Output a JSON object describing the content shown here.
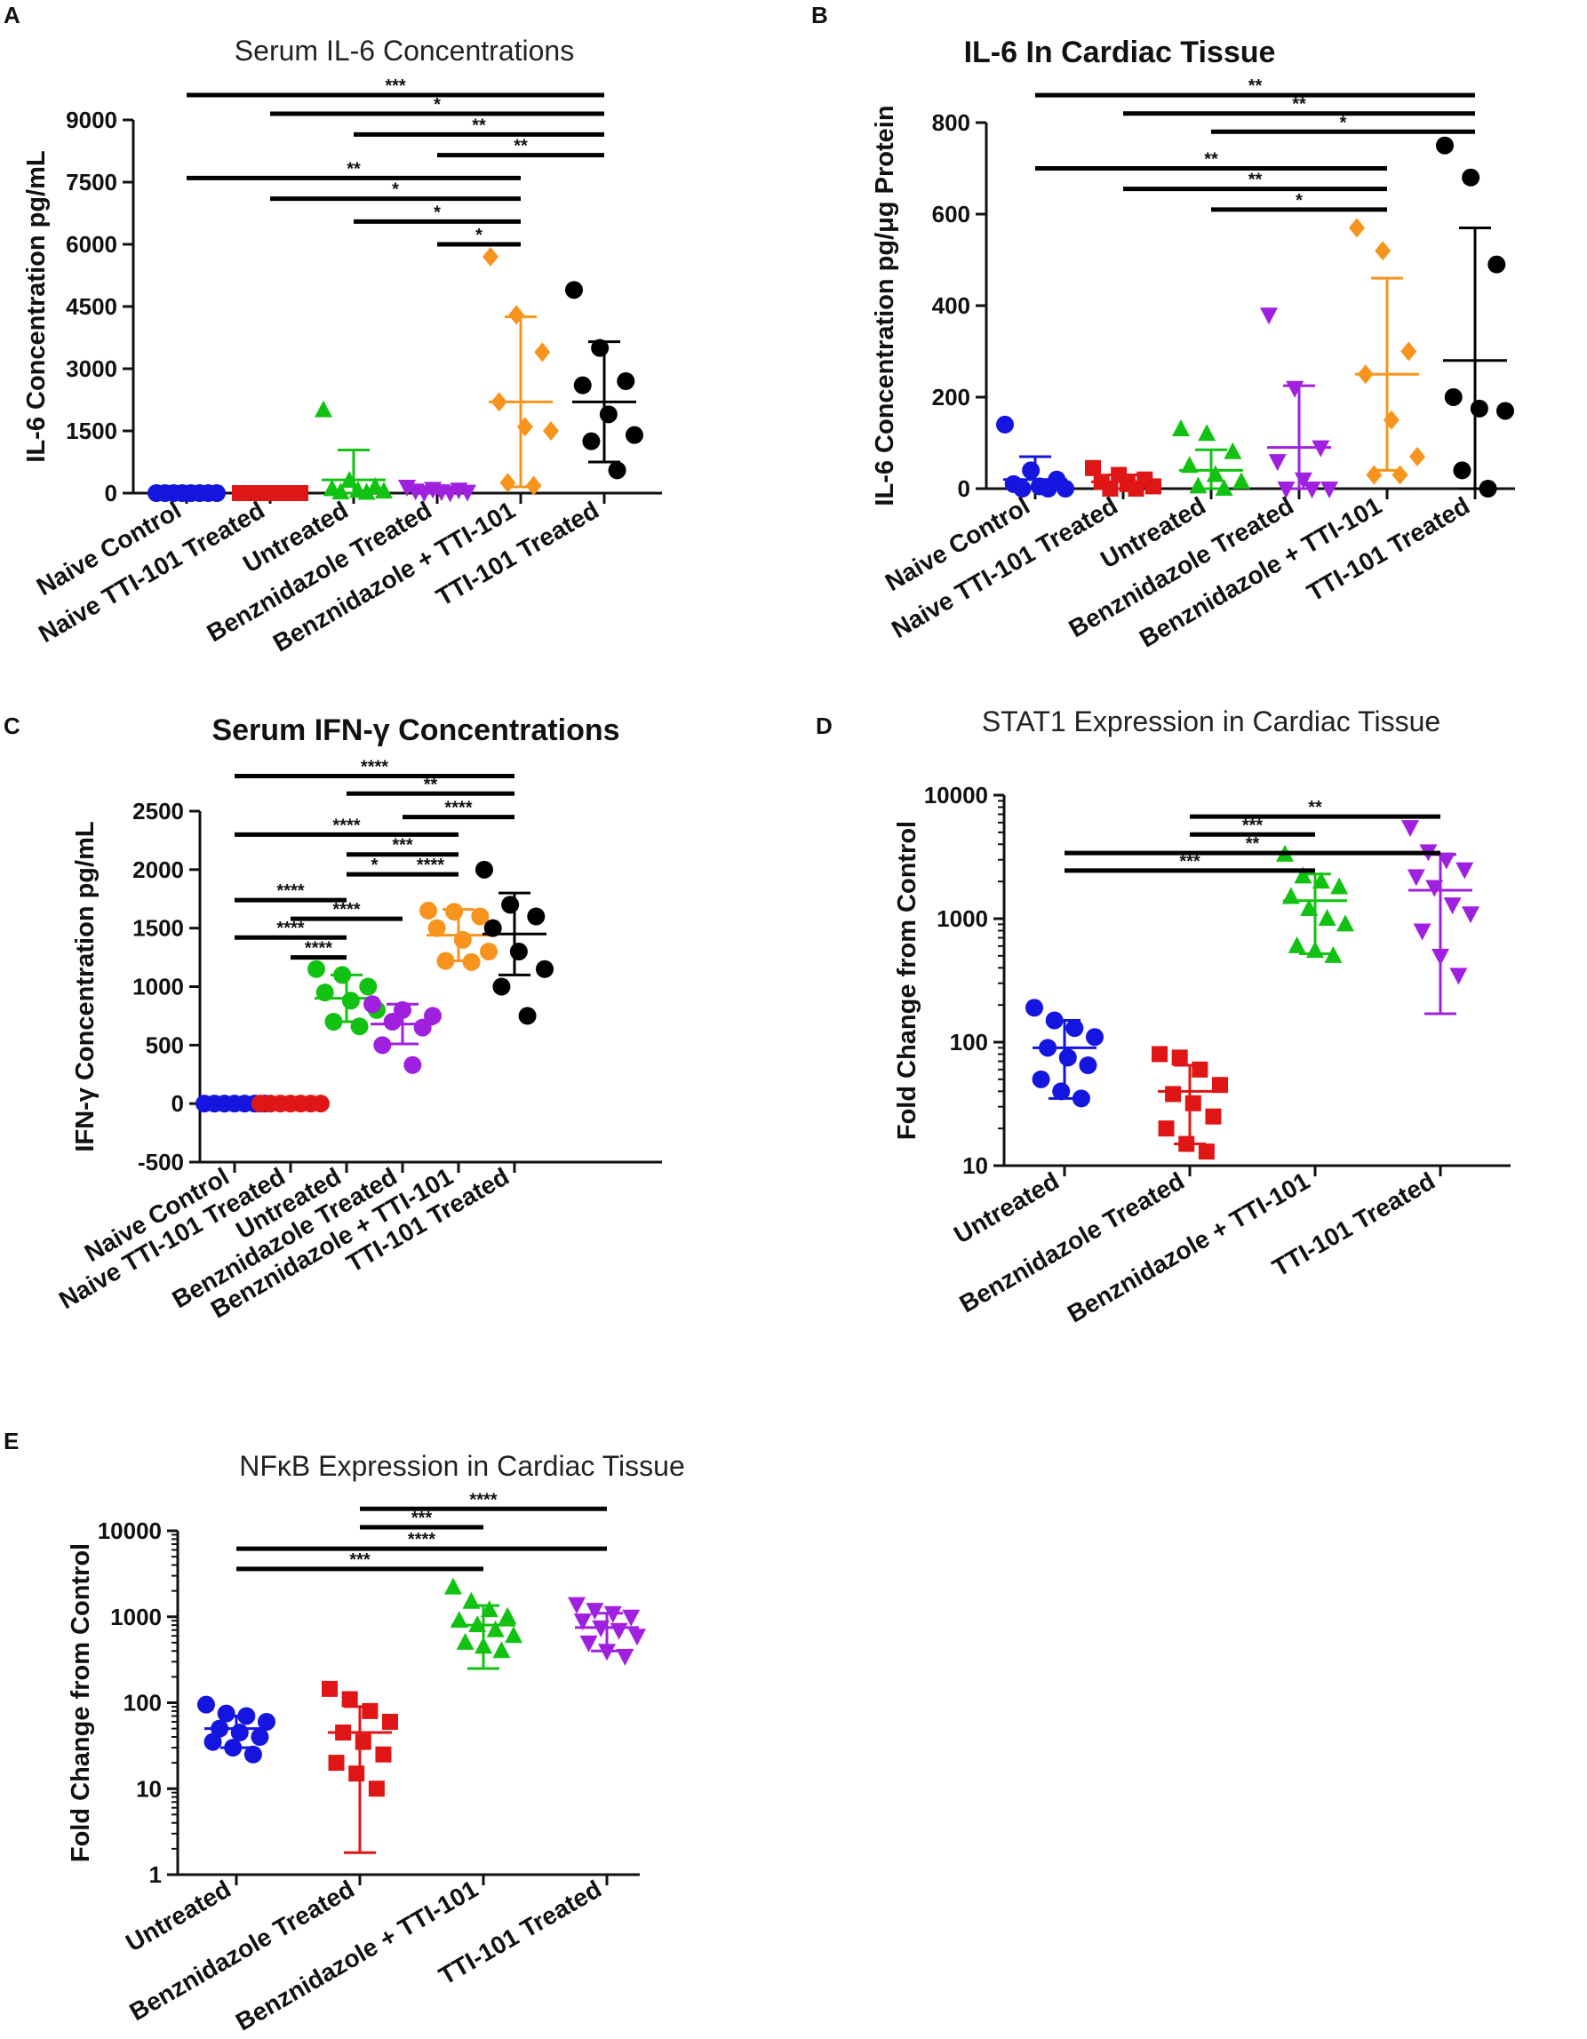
{
  "figure": {
    "panels": [
      {
        "letter": "A",
        "title": "Serum IL-6 Concentrations",
        "title_style": "light"
      },
      {
        "letter": "B",
        "title": "IL-6 In  Cardiac  Tissue",
        "title_style": "bold"
      },
      {
        "letter": "C",
        "title": "Serum IFN-γ Concentrations",
        "title_style": "bold"
      },
      {
        "letter": "D",
        "title": "STAT1 Expression in Cardiac  Tissue",
        "title_style": "light"
      },
      {
        "letter": "E",
        "title": "NFκB Expression in Cardiac  Tissue",
        "title_style": "light"
      }
    ]
  },
  "colors": {
    "naive_control": "#1515e0",
    "naive_tti101": "#e01515",
    "untreated": "#12c212",
    "benznidazole": "#a020e0",
    "benz_tti101": "#f7941d",
    "tti101": "#000000"
  },
  "chart_data": [
    {
      "panel": "A",
      "type": "scatter",
      "scale": "linear",
      "title": "Serum IL-6 Concentrations",
      "ylabel": "IL-6  Concentration pg/mL",
      "ylim": [
        0,
        9000
      ],
      "yticks": [
        0,
        1500,
        3000,
        4500,
        6000,
        7500,
        9000
      ],
      "ytick_labels": [
        "0",
        "1500",
        "3000",
        "4500",
        "6000",
        "7500",
        "9000"
      ],
      "categories": [
        "Naive Control",
        "Naive TTI-101 Treated",
        "Untreated",
        "Benznidazole Treated",
        "Benznidazole + TTI-101",
        "TTI-101 Treated"
      ],
      "series": [
        {
          "name": "Naive Control",
          "color": "#1515e0",
          "marker": "circle",
          "mean": 0,
          "sd": 0,
          "points": [
            0,
            0,
            0,
            0,
            0,
            0,
            0,
            0
          ]
        },
        {
          "name": "Naive TTI-101 Treated",
          "color": "#e01515",
          "marker": "square",
          "mean": 0,
          "sd": 0,
          "points": [
            0,
            0,
            0,
            0,
            0,
            0,
            0,
            0
          ]
        },
        {
          "name": "Untreated",
          "color": "#12c212",
          "marker": "triangle",
          "mean": 320,
          "sd": 720,
          "points": [
            2000,
            300,
            150,
            100,
            60,
            40,
            20,
            10
          ]
        },
        {
          "name": "Benznidazole Treated",
          "color": "#a020e0",
          "marker": "triangle-down",
          "mean": 60,
          "sd": 60,
          "points": [
            150,
            100,
            80,
            60,
            40,
            30,
            20,
            10
          ]
        },
        {
          "name": "Benznidazole + TTI-101",
          "color": "#f7941d",
          "marker": "diamond",
          "mean": 2200,
          "sd": 2050,
          "points": [
            5700,
            4300,
            3400,
            2200,
            1600,
            1500,
            250,
            180
          ]
        },
        {
          "name": "TTI-101 Treated",
          "color": "#000000",
          "marker": "circle",
          "mean": 2200,
          "sd": 1450,
          "points": [
            4900,
            3500,
            2700,
            2600,
            1900,
            1400,
            1250,
            550
          ]
        }
      ],
      "significance": [
        {
          "from": 0,
          "to": 5,
          "label": "***",
          "y": 9600
        },
        {
          "from": 1,
          "to": 5,
          "label": "*",
          "y": 9150
        },
        {
          "from": 2,
          "to": 5,
          "label": "**",
          "y": 8650
        },
        {
          "from": 3,
          "to": 5,
          "label": "**",
          "y": 8150
        },
        {
          "from": 0,
          "to": 4,
          "label": "**",
          "y": 7600
        },
        {
          "from": 1,
          "to": 4,
          "label": "*",
          "y": 7100
        },
        {
          "from": 2,
          "to": 4,
          "label": "*",
          "y": 6550
        },
        {
          "from": 3,
          "to": 4,
          "label": "*",
          "y": 6000
        }
      ]
    },
    {
      "panel": "B",
      "type": "scatter",
      "scale": "linear",
      "title": "IL-6 In  Cardiac  Tissue",
      "ylabel": "IL-6  Concentration pg/μg Protein",
      "ylim": [
        0,
        800
      ],
      "yticks": [
        0,
        200,
        400,
        600,
        800
      ],
      "ytick_labels": [
        "0",
        "200",
        "400",
        "600",
        "800"
      ],
      "categories": [
        "Naive Control",
        "Naive TTI-101 Treated",
        "Untreated",
        "Benznidazole Treated",
        "Benznidazole + TTI-101",
        "TTI-101 Treated"
      ],
      "series": [
        {
          "name": "Naive Control",
          "color": "#1515e0",
          "marker": "circle",
          "mean": 20,
          "sd": 50,
          "points": [
            140,
            40,
            20,
            10,
            5,
            0,
            0,
            0
          ]
        },
        {
          "name": "Naive TTI-101 Treated",
          "color": "#e01515",
          "marker": "square",
          "mean": 15,
          "sd": 15,
          "points": [
            45,
            30,
            20,
            15,
            10,
            5,
            0,
            0
          ]
        },
        {
          "name": "Untreated",
          "color": "#12c212",
          "marker": "triangle",
          "mean": 40,
          "sd": 45,
          "points": [
            130,
            120,
            80,
            50,
            30,
            15,
            5,
            0
          ]
        },
        {
          "name": "Benznidazole Treated",
          "color": "#a020e0",
          "marker": "triangle-down",
          "mean": 90,
          "sd": 135,
          "points": [
            380,
            220,
            90,
            60,
            20,
            0,
            0,
            0
          ]
        },
        {
          "name": "Benznidazole + TTI-101",
          "color": "#f7941d",
          "marker": "diamond",
          "mean": 250,
          "sd": 210,
          "points": [
            570,
            520,
            300,
            250,
            150,
            70,
            30,
            30
          ]
        },
        {
          "name": "TTI-101 Treated",
          "color": "#000000",
          "marker": "circle",
          "mean": 280,
          "sd": 290,
          "points": [
            750,
            680,
            490,
            200,
            175,
            170,
            40,
            0
          ]
        }
      ],
      "significance": [
        {
          "from": 0,
          "to": 5,
          "label": "**",
          "y": 860
        },
        {
          "from": 1,
          "to": 5,
          "label": "**",
          "y": 820
        },
        {
          "from": 2,
          "to": 5,
          "label": "*",
          "y": 780
        },
        {
          "from": 0,
          "to": 4,
          "label": "**",
          "y": 700
        },
        {
          "from": 1,
          "to": 4,
          "label": "**",
          "y": 655
        },
        {
          "from": 2,
          "to": 4,
          "label": "*",
          "y": 610
        }
      ]
    },
    {
      "panel": "C",
      "type": "scatter",
      "scale": "linear",
      "title": "Serum IFN-γ Concentrations",
      "ylabel": "IFN-γ Concentration pg/mL",
      "ylim": [
        -500,
        2500
      ],
      "yticks": [
        -500,
        0,
        500,
        1000,
        1500,
        2000,
        2500
      ],
      "ytick_labels": [
        "-500",
        "0",
        "500",
        "1000",
        "1500",
        "2000",
        "2500"
      ],
      "categories": [
        "Naive Control",
        "Naive TTI-101 Treated",
        "Untreated",
        "Benznidazole Treated",
        "Benznidazole + TTI-101",
        "TTI-101 Treated"
      ],
      "series": [
        {
          "name": "Naive Control",
          "color": "#1515e0",
          "marker": "circle",
          "mean": 0,
          "sd": 0,
          "points": [
            0,
            0,
            0,
            0,
            0,
            0,
            0
          ]
        },
        {
          "name": "Naive TTI-101 Treated",
          "color": "#e01515",
          "marker": "circle",
          "mean": 0,
          "sd": 0,
          "points": [
            0,
            0,
            0,
            0,
            0,
            0,
            0
          ]
        },
        {
          "name": "Untreated",
          "color": "#12c212",
          "marker": "circle",
          "mean": 900,
          "sd": 200,
          "points": [
            1150,
            1100,
            1000,
            950,
            880,
            800,
            700,
            660
          ]
        },
        {
          "name": "Benznidazole Treated",
          "color": "#a020e0",
          "marker": "circle",
          "mean": 680,
          "sd": 170,
          "points": [
            850,
            800,
            750,
            700,
            650,
            500,
            330
          ]
        },
        {
          "name": "Benznidazole + TTI-101",
          "color": "#f7941d",
          "marker": "circle",
          "mean": 1440,
          "sd": 220,
          "points": [
            1650,
            1640,
            1600,
            1500,
            1400,
            1300,
            1220,
            1210
          ]
        },
        {
          "name": "TTI-101 Treated",
          "color": "#000000",
          "marker": "circle",
          "mean": 1450,
          "sd": 350,
          "points": [
            2000,
            1700,
            1600,
            1500,
            1300,
            1150,
            1000,
            750
          ]
        }
      ],
      "significance": [
        {
          "from": 0,
          "to": 5,
          "label": "****",
          "y": 2800
        },
        {
          "from": 2,
          "to": 5,
          "label": "**",
          "y": 2650
        },
        {
          "from": 3,
          "to": 5,
          "label": "****",
          "y": 2450
        },
        {
          "from": 0,
          "to": 4,
          "label": "****",
          "y": 2300
        },
        {
          "from": 2,
          "to": 4,
          "label": "***",
          "y": 2130
        },
        {
          "from": 2,
          "to": 3,
          "label": "*",
          "y": 1960
        },
        {
          "from": 3,
          "to": 4,
          "label": "****",
          "y": 1960
        },
        {
          "from": 0,
          "to": 2,
          "label": "****",
          "y": 1740
        },
        {
          "from": 1,
          "to": 3,
          "label": "****",
          "y": 1580
        },
        {
          "from": 0,
          "to": 2,
          "label": "****",
          "y": 1420
        },
        {
          "from": 1,
          "to": 2,
          "label": "****",
          "y": 1250
        }
      ]
    },
    {
      "panel": "D",
      "type": "scatter",
      "scale": "log",
      "title": "STAT1 Expression in Cardiac  Tissue",
      "ylabel": "Fold Change from Control",
      "ylim": [
        10,
        10000
      ],
      "yticks": [
        10,
        100,
        1000,
        10000
      ],
      "ytick_labels": [
        "10",
        "100",
        "1000",
        "10000"
      ],
      "categories": [
        "Untreated",
        "Benznidazole Treated",
        "Benznidazole + TTI-101",
        "TTI-101 Treated"
      ],
      "series": [
        {
          "name": "Untreated",
          "color": "#1515e0",
          "marker": "circle",
          "mean": 90,
          "err_low": 35,
          "err_high": 150,
          "points": [
            190,
            150,
            130,
            110,
            90,
            75,
            65,
            50,
            40,
            35
          ]
        },
        {
          "name": "Benznidazole Treated",
          "color": "#e01515",
          "marker": "square",
          "mean": 40,
          "err_low": 15,
          "err_high": 65,
          "points": [
            80,
            75,
            60,
            45,
            38,
            32,
            25,
            20,
            15,
            13
          ]
        },
        {
          "name": "Benznidazole + TTI-101",
          "color": "#12c212",
          "marker": "triangle",
          "mean": 1400,
          "err_low": 520,
          "err_high": 2300,
          "points": [
            3300,
            2200,
            2000,
            1800,
            1500,
            1200,
            1000,
            900,
            600,
            550,
            500
          ]
        },
        {
          "name": "TTI-101 Treated",
          "color": "#a020e0",
          "marker": "triangle-down",
          "mean": 1700,
          "err_low": 170,
          "err_high": 3300,
          "points": [
            5500,
            3500,
            3000,
            2500,
            2200,
            1800,
            1300,
            1100,
            800,
            500,
            350
          ]
        }
      ],
      "significance": [
        {
          "from": 1,
          "to": 3,
          "label": "**",
          "y": 6700
        },
        {
          "from": 1,
          "to": 2,
          "label": "***",
          "y": 4800
        },
        {
          "from": 0,
          "to": 3,
          "label": "**",
          "y": 3400
        },
        {
          "from": 0,
          "to": 2,
          "label": "***",
          "y": 2450
        }
      ]
    },
    {
      "panel": "E",
      "type": "scatter",
      "scale": "log",
      "title": "NFκB Expression in Cardiac  Tissue",
      "ylabel": "Fold Change from Control",
      "ylim": [
        1,
        10000
      ],
      "yticks": [
        1,
        10,
        100,
        1000,
        10000
      ],
      "ytick_labels": [
        "1",
        "10",
        "100",
        "1000",
        "10000"
      ],
      "categories": [
        "Untreated",
        "Benznidazole Treated",
        "Benznidazole + TTI-101",
        "TTI-101 Treated"
      ],
      "series": [
        {
          "name": "Untreated",
          "color": "#1515e0",
          "marker": "circle",
          "mean": 50,
          "err_low": 30,
          "err_high": 70,
          "points": [
            95,
            75,
            70,
            60,
            50,
            45,
            40,
            35,
            30,
            25
          ]
        },
        {
          "name": "Benznidazole Treated",
          "color": "#e01515",
          "marker": "square",
          "mean": 45,
          "err_low": 1.8,
          "err_high": 90,
          "points": [
            145,
            110,
            80,
            60,
            45,
            35,
            25,
            20,
            15,
            10
          ]
        },
        {
          "name": "Benznidazole + TTI-101",
          "color": "#12c212",
          "marker": "triangle",
          "mean": 800,
          "err_low": 250,
          "err_high": 1350,
          "points": [
            2200,
            1500,
            1200,
            1000,
            900,
            800,
            700,
            600,
            500,
            450,
            400
          ]
        },
        {
          "name": "TTI-101 Treated",
          "color": "#a020e0",
          "marker": "triangle-down",
          "mean": 750,
          "err_low": 400,
          "err_high": 1100,
          "points": [
            1400,
            1200,
            1100,
            1000,
            900,
            750,
            700,
            600,
            500,
            400,
            350
          ]
        }
      ],
      "significance": [
        {
          "from": 1,
          "to": 3,
          "label": "****",
          "y": 18000
        },
        {
          "from": 1,
          "to": 2,
          "label": "***",
          "y": 11000
        },
        {
          "from": 0,
          "to": 3,
          "label": "****",
          "y": 6200
        },
        {
          "from": 0,
          "to": 2,
          "label": "***",
          "y": 3600
        }
      ]
    }
  ]
}
